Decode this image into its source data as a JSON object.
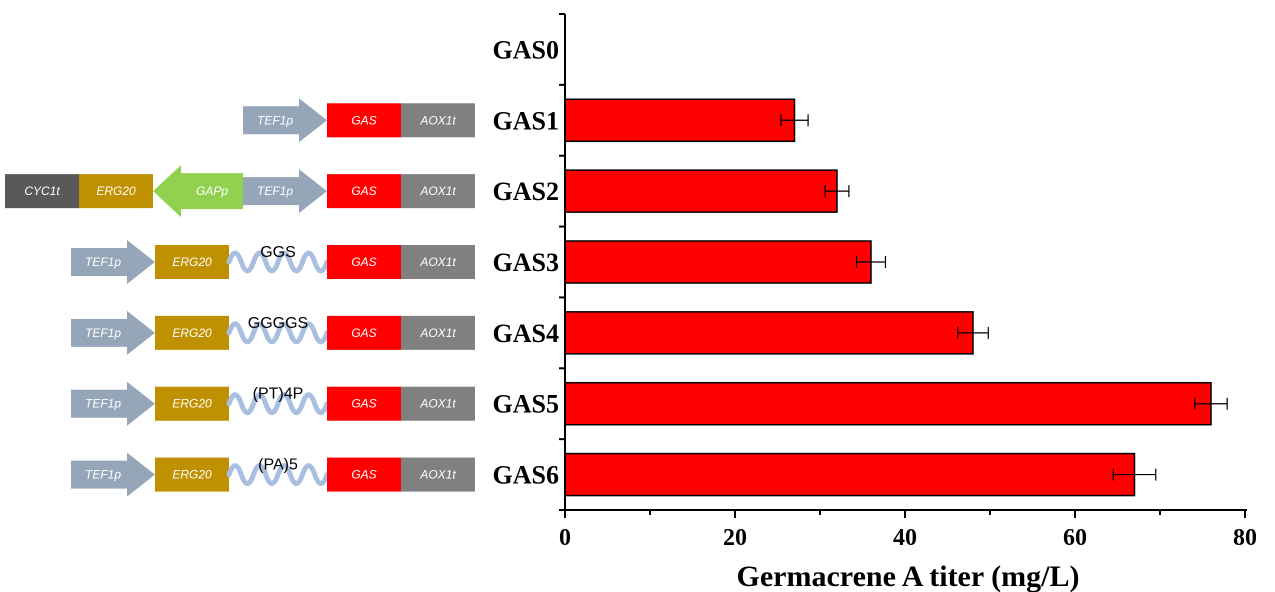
{
  "chart_data": {
    "type": "bar",
    "orientation": "horizontal",
    "categories": [
      "GAS0",
      "GAS1",
      "GAS2",
      "GAS3",
      "GAS4",
      "GAS5",
      "GAS6"
    ],
    "values": [
      0,
      27,
      32,
      36,
      48,
      76,
      67
    ],
    "errors": [
      0,
      1.6,
      1.4,
      1.7,
      1.8,
      1.9,
      2.5
    ],
    "xlabel": "Germacrene A titer (mg/L)",
    "xlim": [
      0,
      80
    ],
    "xticks": [
      "0",
      "20",
      "40",
      "60",
      "80"
    ],
    "bar_color": "#ff0000",
    "grid": false
  },
  "constructs": [
    {
      "name": "GAS0",
      "parts": []
    },
    {
      "name": "GAS1",
      "parts": [
        {
          "type": "arrow",
          "label": "TEF1p",
          "color": "#96a6b9"
        },
        {
          "type": "box",
          "label": "GAS",
          "color": "#ff0000"
        },
        {
          "type": "box",
          "label": "AOX1t",
          "color": "#808080"
        }
      ]
    },
    {
      "name": "GAS2",
      "parts": [
        {
          "type": "box",
          "label": "CYC1t",
          "color": "#595959"
        },
        {
          "type": "box",
          "label": "ERG20",
          "color": "#bf9000"
        },
        {
          "type": "rarrow",
          "label": "GAPp",
          "color": "#92d050"
        },
        {
          "type": "arrow",
          "label": "TEF1p",
          "color": "#96a6b9"
        },
        {
          "type": "box",
          "label": "GAS",
          "color": "#ff0000"
        },
        {
          "type": "box",
          "label": "AOX1t",
          "color": "#808080"
        }
      ]
    },
    {
      "name": "GAS3",
      "parts": [
        {
          "type": "arrow",
          "label": "TEF1p",
          "color": "#96a6b9"
        },
        {
          "type": "box",
          "label": "ERG20",
          "color": "#bf9000"
        },
        {
          "type": "linker",
          "label": "GGS",
          "color": "#a9bfe0"
        },
        {
          "type": "box",
          "label": "GAS",
          "color": "#ff0000"
        },
        {
          "type": "box",
          "label": "AOX1t",
          "color": "#808080"
        }
      ]
    },
    {
      "name": "GAS4",
      "parts": [
        {
          "type": "arrow",
          "label": "TEF1p",
          "color": "#96a6b9"
        },
        {
          "type": "box",
          "label": "ERG20",
          "color": "#bf9000"
        },
        {
          "type": "linker",
          "label": "GGGGS",
          "color": "#a9bfe0"
        },
        {
          "type": "box",
          "label": "GAS",
          "color": "#ff0000"
        },
        {
          "type": "box",
          "label": "AOX1t",
          "color": "#808080"
        }
      ]
    },
    {
      "name": "GAS5",
      "parts": [
        {
          "type": "arrow",
          "label": "TEF1p",
          "color": "#96a6b9"
        },
        {
          "type": "box",
          "label": "ERG20",
          "color": "#bf9000"
        },
        {
          "type": "linker",
          "label": "(PT)4P",
          "color": "#a9bfe0"
        },
        {
          "type": "box",
          "label": "GAS",
          "color": "#ff0000"
        },
        {
          "type": "box",
          "label": "AOX1t",
          "color": "#808080"
        }
      ]
    },
    {
      "name": "GAS6",
      "parts": [
        {
          "type": "arrow",
          "label": "TEF1p",
          "color": "#96a6b9"
        },
        {
          "type": "box",
          "label": "ERG20",
          "color": "#bf9000"
        },
        {
          "type": "linker",
          "label": "(PA)5",
          "color": "#a9bfe0"
        },
        {
          "type": "box",
          "label": "GAS",
          "color": "#ff0000"
        },
        {
          "type": "box",
          "label": "AOX1t",
          "color": "#808080"
        }
      ]
    }
  ]
}
